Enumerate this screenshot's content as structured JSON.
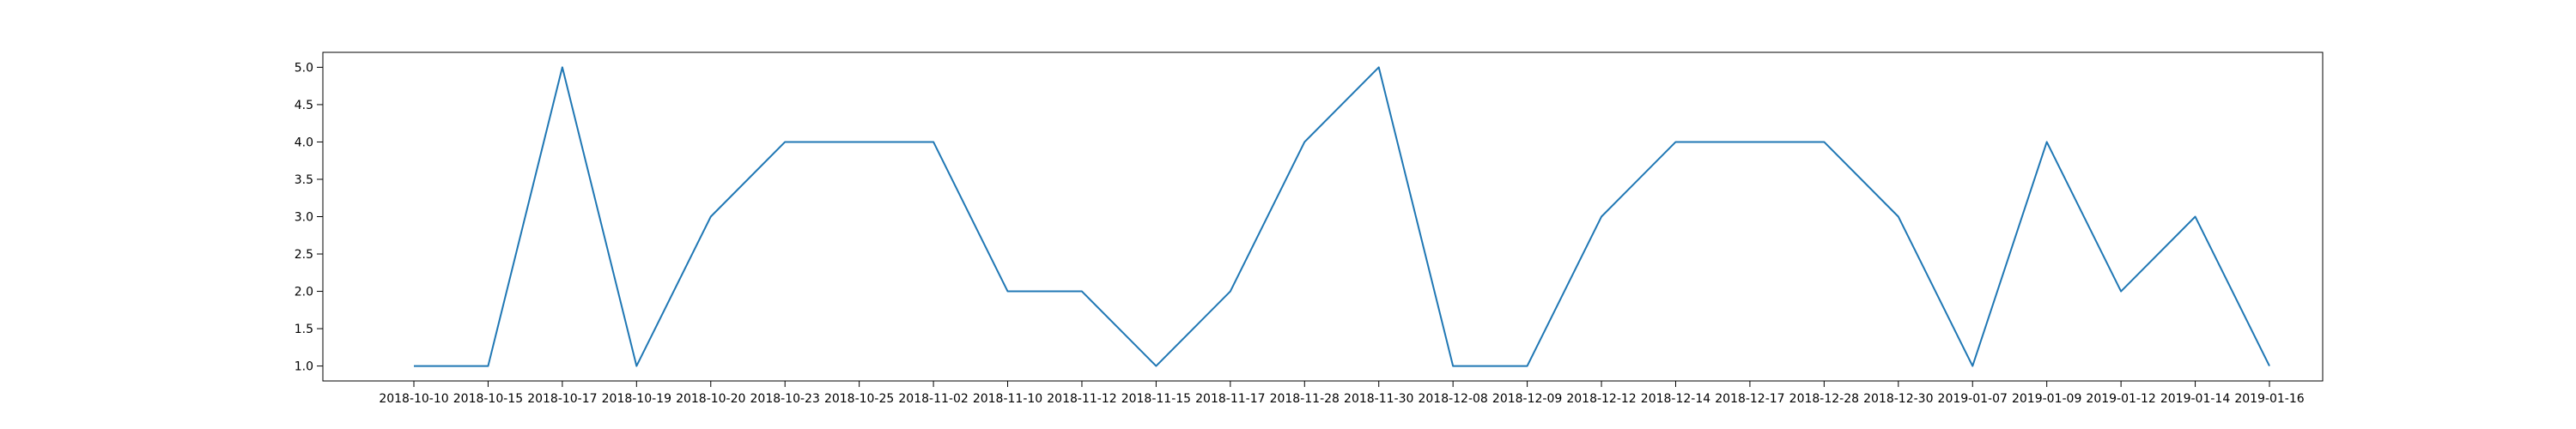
{
  "chart_data": {
    "type": "line",
    "title": "",
    "xlabel": "",
    "ylabel": "",
    "categories": [
      "2018-10-10",
      "2018-10-15",
      "2018-10-17",
      "2018-10-19",
      "2018-10-20",
      "2018-10-23",
      "2018-10-25",
      "2018-11-02",
      "2018-11-10",
      "2018-11-12",
      "2018-11-15",
      "2018-11-17",
      "2018-11-28",
      "2018-11-30",
      "2018-12-08",
      "2018-12-09",
      "2018-12-12",
      "2018-12-14",
      "2018-12-17",
      "2018-12-28",
      "2018-12-30",
      "2019-01-07",
      "2019-01-09",
      "2019-01-12",
      "2019-01-14",
      "2019-01-16"
    ],
    "series": [
      {
        "name": "",
        "color": "#1f77b4",
        "values": [
          1,
          1,
          5,
          1,
          3,
          4,
          4,
          4,
          2,
          2,
          1,
          2,
          4,
          5,
          1,
          1,
          3,
          4,
          4,
          4,
          3,
          1,
          4,
          2,
          3,
          1
        ]
      }
    ],
    "ylim": [
      0.8,
      5.2
    ],
    "yticks": [
      "1.0",
      "1.5",
      "2.0",
      "2.5",
      "3.0",
      "3.5",
      "4.0",
      "4.5",
      "5.0"
    ],
    "grid": false,
    "legend": "none"
  }
}
